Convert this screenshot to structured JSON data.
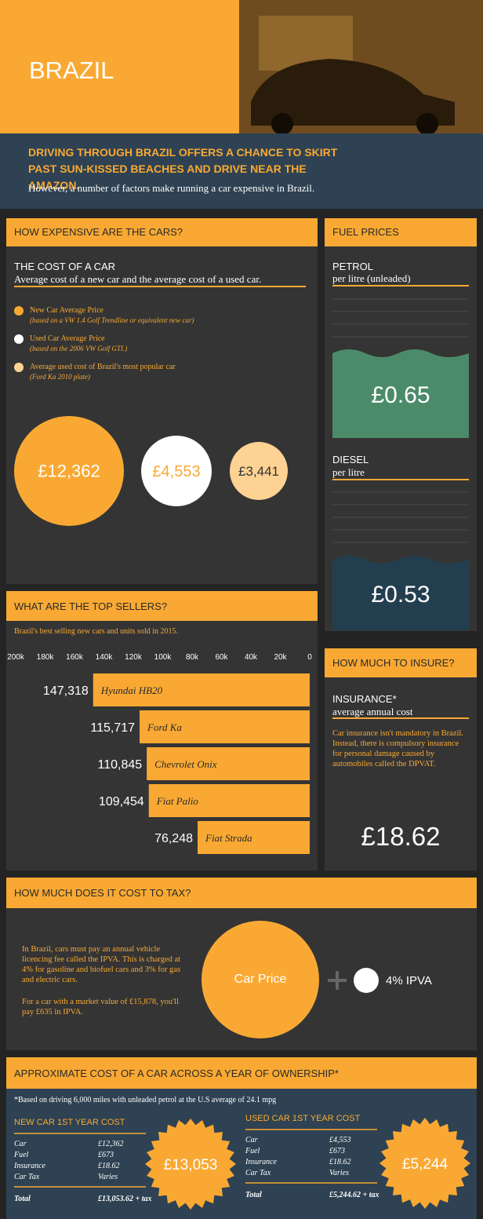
{
  "header": {
    "title": "BRAZIL",
    "headline": "DRIVING THROUGH BRAZIL OFFERS A CHANCE TO SKIRT PAST SUN-KISSED BEACHES AND DRIVE NEAR THE AMAZON.",
    "subtitle": "However, a number of factors make running a car expensive in Brazil."
  },
  "cars": {
    "heading": "HOW EXPENSIVE ARE THE CARS?",
    "title": "THE COST OF A CAR",
    "subtitle": "Average cost of a new car and the average cost of a used car.",
    "legend": [
      {
        "label": "New Car Average Price",
        "note": "(based on a VW 1.4 Golf Trendline or equivalent new car)",
        "color": "#f9a933"
      },
      {
        "label": "Used Car Average Price",
        "note": "(based on the 2006 VW Golf GTI.)",
        "color": "#ffffff"
      },
      {
        "label": "Average used cost of Brazil's most popular car",
        "note": "(Ford Ka 2010 plate)",
        "color": "#fdd293"
      }
    ],
    "prices": [
      "£12,362",
      "£4,553",
      "£3,441"
    ]
  },
  "fuel": {
    "heading": "FUEL PRICES",
    "petrol": {
      "title": "PETROL",
      "subtitle": "per litre (unleaded)",
      "price": "£0.65"
    },
    "diesel": {
      "title": "DIESEL",
      "subtitle": "per litre",
      "price": "£0.53"
    }
  },
  "chart_data": {
    "type": "bar",
    "title": "WHAT ARE THE TOP SELLERS?",
    "subtitle": "Brazil's best selling new cars and units sold in 2015.",
    "categories": [
      "Hyundai HB20",
      "Ford Ka",
      "Chevrolet Onix",
      "Fiat Palio",
      "Fiat Strada"
    ],
    "values": [
      147318,
      115717,
      110845,
      109454,
      76248
    ],
    "value_labels": [
      "147,318",
      "115,717",
      "110,845",
      "109,454",
      "76,248"
    ],
    "color": "#f9a933",
    "xlim": [
      200000,
      0
    ],
    "xticks": [
      {
        "value": 200000,
        "label": "200k"
      },
      {
        "value": 180000,
        "label": "180k"
      },
      {
        "value": 160000,
        "label": "160k"
      },
      {
        "value": 140000,
        "label": "140k"
      },
      {
        "value": 120000,
        "label": "120k"
      },
      {
        "value": 100000,
        "label": "100k"
      },
      {
        "value": 80000,
        "label": "80k"
      },
      {
        "value": 60000,
        "label": "60k"
      },
      {
        "value": 40000,
        "label": "40k"
      },
      {
        "value": 20000,
        "label": "20k"
      },
      0
    ]
  },
  "insurance": {
    "heading": "HOW MUCH TO INSURE?",
    "title": "INSURANCE*",
    "subtitle": "average annual cost",
    "text": "Car insurance isn't mandatory in Brazil. Instead, there is compulsory insurance for personal damage caused by automobiles called the DPVAT.",
    "price": "£18.62"
  },
  "tax": {
    "heading": "HOW MUCH DOES IT COST TO TAX?",
    "paragraphs": [
      "In Brazil, cars must pay an annual vehicle licencing fee called the IPVA. This is charged at 4% for gasoline and biofuel cars and 3% for gas and electric cars.",
      "For a car with a market value of £15,878, you'll pay £635 in IPVA."
    ],
    "circle": "Car Price",
    "addition": "4% IPVA"
  },
  "ownership": {
    "heading": "APPROXIMATE COST OF A CAR ACROSS A YEAR OF OWNERSHIP*",
    "note": "*Based on driving 6,000 miles with unleaded petrol at the U.S average of 24.1 mpg",
    "tables": [
      {
        "title": "NEW CAR 1ST YEAR COST",
        "rows": [
          [
            "Car",
            "£12,362"
          ],
          [
            "Fuel",
            "£673"
          ],
          [
            "Insurance",
            "£18.62"
          ],
          [
            "Car Tax",
            "Varies"
          ]
        ],
        "total": [
          "Total",
          "£13,053.62 + tax"
        ],
        "badge": "£13,053"
      },
      {
        "title": "USED CAR 1ST YEAR COST",
        "rows": [
          [
            "Car",
            "£4,553"
          ],
          [
            "Fuel",
            "£673"
          ],
          [
            "Insurance",
            "£18.62"
          ],
          [
            "Car Tax",
            "Varies"
          ]
        ],
        "total": [
          "Total",
          "£5,244.62 + tax"
        ],
        "badge": "£5,244"
      }
    ]
  }
}
